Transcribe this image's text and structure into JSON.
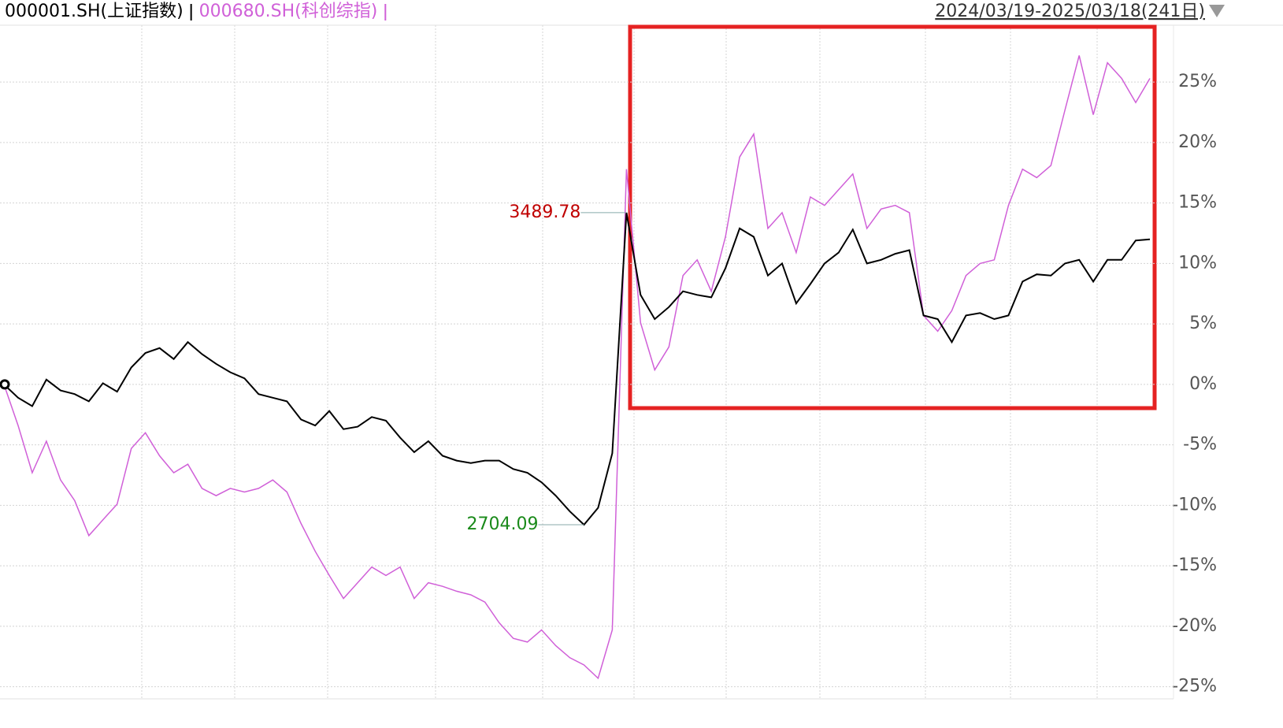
{
  "chart_data": {
    "type": "line",
    "date_range": "2024/03/19-2025/03/18(241日)",
    "categories": [
      null,
      null,
      null,
      null,
      null,
      null,
      null,
      null,
      null,
      null,
      null,
      null,
      null,
      null,
      null,
      null,
      null,
      null,
      null,
      null,
      null,
      null,
      null,
      null,
      null,
      null,
      null,
      null,
      null,
      null,
      null,
      null,
      null,
      null,
      null,
      null,
      null,
      null,
      null,
      null,
      null,
      null,
      null,
      null,
      null,
      null,
      null,
      null,
      null,
      null,
      null,
      null,
      null,
      null,
      null,
      null,
      null,
      null,
      null,
      null,
      null,
      null,
      null,
      null,
      null,
      null,
      null,
      null,
      null,
      null,
      null,
      null,
      null,
      null,
      null,
      null,
      null,
      null,
      null,
      null,
      null,
      null
    ],
    "series": [
      {
        "name": "000001.SH(上证指数)",
        "color": "#000000",
        "values": [
          0,
          -1.1,
          -1.8,
          0.4,
          -0.5,
          -0.8,
          -1.4,
          0.1,
          -0.6,
          1.4,
          2.6,
          3.0,
          2.1,
          3.5,
          2.5,
          1.7,
          1.0,
          0.5,
          -0.8,
          -1.1,
          -1.4,
          -2.9,
          -3.4,
          -2.2,
          -3.7,
          -3.5,
          -2.7,
          -3.0,
          -4.4,
          -5.6,
          -4.7,
          -5.9,
          -6.3,
          -6.5,
          -6.3,
          -6.3,
          -7.0,
          -7.3,
          -8.1,
          -9.2,
          -10.5,
          -11.6,
          -10.2,
          -5.7,
          14.2,
          7.4,
          5.4,
          6.4,
          7.7,
          7.4,
          7.2,
          9.6,
          12.9,
          12.2,
          9.0,
          10.0,
          6.7,
          8.3,
          10.0,
          10.9,
          12.8,
          10.0,
          10.3,
          10.8,
          11.1,
          5.7,
          5.4,
          3.5,
          5.7,
          5.9,
          5.4,
          5.7,
          8.5,
          9.1,
          9.0,
          10.0,
          10.3,
          8.5,
          10.3,
          10.3,
          11.9,
          12.0
        ]
      },
      {
        "name": "000680.SH(科创综指)",
        "color": "#d060d8",
        "values": [
          0,
          -3.4,
          -7.3,
          -4.7,
          -7.9,
          -9.6,
          -12.5,
          -11.2,
          -9.9,
          -5.3,
          -4.0,
          -5.9,
          -7.3,
          -6.6,
          -8.6,
          -9.2,
          -8.6,
          -8.9,
          -8.6,
          -7.9,
          -8.9,
          -11.5,
          -13.8,
          -15.8,
          -17.7,
          -16.4,
          -15.1,
          -15.8,
          -15.1,
          -17.7,
          -16.4,
          -16.7,
          -17.1,
          -17.4,
          -18.0,
          -19.7,
          -21.0,
          -21.3,
          -20.3,
          -21.6,
          -22.6,
          -23.2,
          -24.3,
          -20.3,
          17.8,
          5.1,
          1.2,
          3.1,
          9.0,
          10.3,
          7.7,
          12.2,
          18.8,
          20.7,
          12.9,
          14.2,
          10.9,
          15.5,
          14.8,
          16.1,
          17.4,
          12.9,
          14.5,
          14.8,
          14.2,
          5.7,
          4.4,
          6.1,
          9.0,
          10.0,
          10.3,
          14.8,
          17.8,
          17.1,
          18.1,
          22.7,
          27.2,
          22.3,
          26.6,
          25.3,
          23.3,
          25.3
        ]
      }
    ],
    "annotations": [
      {
        "text": "3489.78",
        "color": "#c00000"
      },
      {
        "text": "2704.09",
        "color": "#1a8a1a"
      }
    ],
    "ylim": [
      -26,
      29.7
    ],
    "yticks": [
      {
        "value": -25,
        "label": "-25%"
      },
      {
        "value": -20,
        "label": "-20%"
      },
      {
        "value": -15,
        "label": "-15%"
      },
      {
        "value": -10,
        "label": "-10%"
      },
      {
        "value": -5,
        "label": "-5%"
      },
      {
        "value": 0,
        "label": "0%"
      },
      {
        "value": 5,
        "label": "5%"
      },
      {
        "value": 10,
        "label": "10%"
      },
      {
        "value": 15,
        "label": "15%"
      },
      {
        "value": 20,
        "label": "20%"
      },
      {
        "value": 25,
        "label": "25%"
      }
    ],
    "grid": true
  }
}
